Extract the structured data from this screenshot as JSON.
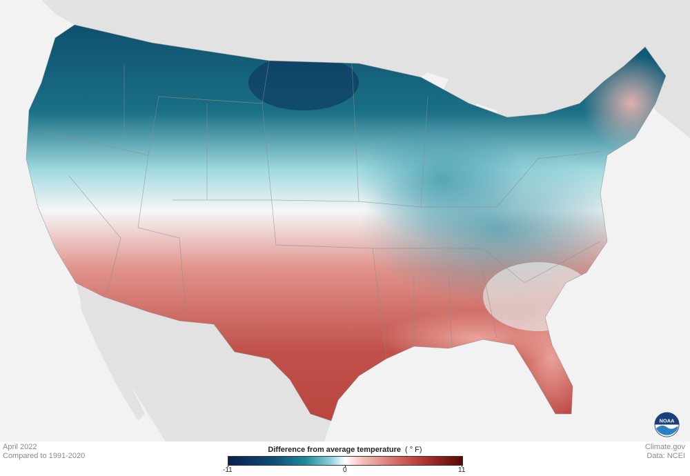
{
  "map": {
    "period": "April 2022",
    "baseline": "Compared to 1991-2020",
    "credit_site": "Climate.gov",
    "credit_data": "Data: NCEI"
  },
  "legend": {
    "title": "Difference from average temperature",
    "unit": "( ° F)",
    "ticks": [
      "-11",
      "0",
      "11"
    ],
    "min": -11,
    "max": 11,
    "colors": [
      "#0b1f4f",
      "#1f8a9c",
      "#ffffff",
      "#d9756e",
      "#5a0606"
    ]
  },
  "logo": {
    "text": "NOAA"
  }
}
